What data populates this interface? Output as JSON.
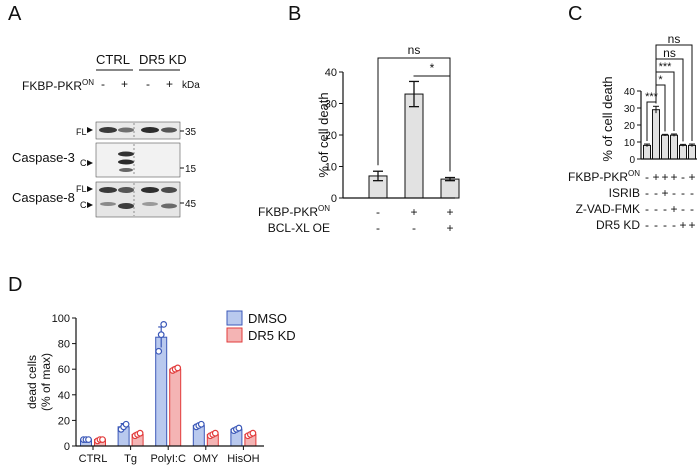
{
  "panels": {
    "a": "A",
    "b": "B",
    "c": "C",
    "d": "D"
  },
  "blot": {
    "groups": [
      "CTRL",
      "DR5 KD"
    ],
    "row_label": "FKBP-PKR",
    "row_sup": "ON",
    "lane_signs": [
      "-",
      "+",
      "-",
      "+"
    ],
    "kda_label": "kDa",
    "caspase3": "Caspase-3",
    "caspase8": "Caspase-8",
    "fl": "FL",
    "c": "C",
    "mw": [
      "35",
      "15",
      "45"
    ]
  },
  "chart_data": [
    {
      "id": "B",
      "type": "bar",
      "ylabel": "% of cell death",
      "ylim": [
        0,
        40
      ],
      "yticks": [
        "0",
        "10",
        "20",
        "30",
        "40"
      ],
      "categories": [
        "1",
        "2",
        "3"
      ],
      "values": [
        7,
        33,
        6
      ],
      "errors": [
        1.5,
        4,
        0.5
      ],
      "conditions": [
        {
          "label": "FKBP-PKR",
          "sup": "ON",
          "signs": [
            "-",
            "+",
            "+"
          ]
        },
        {
          "label": "BCL-XL OE",
          "sup": "",
          "signs": [
            "-",
            "-",
            "+"
          ]
        }
      ],
      "significance": [
        {
          "from": 0,
          "to": 2,
          "label": "ns"
        },
        {
          "from": 1,
          "to": 2,
          "label": "*"
        }
      ]
    },
    {
      "id": "C",
      "type": "bar",
      "ylabel": "% of cell death",
      "ylim": [
        0,
        40
      ],
      "yticks": [
        "0",
        "10",
        "20",
        "30",
        "40"
      ],
      "categories": [
        "1",
        "2",
        "3",
        "4",
        "5",
        "6"
      ],
      "values": [
        8,
        29,
        14,
        14,
        8,
        8
      ],
      "errors": [
        0.8,
        2,
        0.5,
        0.7,
        0.6,
        0.8
      ],
      "conditions": [
        {
          "label": "FKBP-PKR",
          "sup": "ON",
          "signs": [
            "-",
            "+",
            "+",
            "+",
            "-",
            "+"
          ]
        },
        {
          "label": "ISRIB",
          "sup": "",
          "signs": [
            "-",
            "-",
            "+",
            "-",
            "-",
            "-"
          ]
        },
        {
          "label": "Z-VAD-FMK",
          "sup": "",
          "signs": [
            "-",
            "-",
            "-",
            "+",
            "-",
            "-"
          ]
        },
        {
          "label": "DR5 KD",
          "sup": "",
          "signs": [
            "-",
            "-",
            "-",
            "-",
            "+",
            "+"
          ]
        }
      ],
      "significance": [
        {
          "from": 0,
          "to": 1,
          "label": "***"
        },
        {
          "from": 1,
          "to": 2,
          "label": "*"
        },
        {
          "from": 1,
          "to": 3,
          "label": "***"
        },
        {
          "from": 1,
          "to": 4,
          "label": "ns"
        },
        {
          "from": 1,
          "to": 5,
          "label": "ns"
        }
      ]
    },
    {
      "id": "D",
      "type": "bar",
      "ylabel": "dead cells",
      "ylabel2": "(% of max)",
      "ylim": [
        0,
        100
      ],
      "yticks": [
        "0",
        "20",
        "40",
        "60",
        "80",
        "100"
      ],
      "categories": [
        "CTRL",
        "Tg",
        "PolyI:C",
        "OMY",
        "HisOH"
      ],
      "series": [
        {
          "name": "DMSO",
          "color": "#b9c9ee",
          "stroke": "#3b58b8",
          "values": [
            5,
            15,
            85,
            16,
            13
          ],
          "errors": [
            0.5,
            2.5,
            8,
            1,
            1
          ],
          "points": [
            [
              5,
              5,
              5
            ],
            [
              13,
              15,
              17
            ],
            [
              74,
              87,
              95
            ],
            [
              15,
              16,
              17
            ],
            [
              12,
              13,
              14
            ]
          ]
        },
        {
          "name": "DR5 KD",
          "color": "#f4b4b4",
          "stroke": "#e23b3b",
          "values": [
            5,
            9,
            60,
            9,
            9
          ],
          "errors": [
            0.5,
            1.5,
            1.5,
            1,
            1
          ],
          "points": [
            [
              4,
              5,
              5
            ],
            [
              8,
              9,
              10
            ],
            [
              59,
              60,
              61
            ],
            [
              8,
              9,
              10
            ],
            [
              8,
              9,
              10
            ]
          ]
        }
      ]
    }
  ]
}
